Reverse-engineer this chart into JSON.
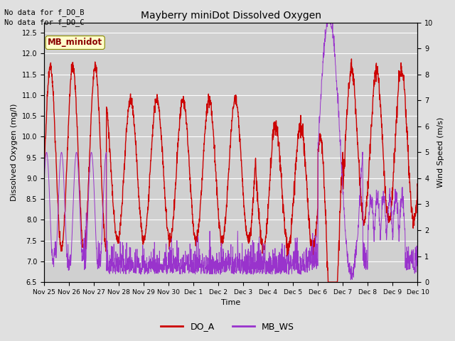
{
  "title": "Mayberry miniDot Dissolved Oxygen",
  "xlabel": "Time",
  "ylabel_left": "Dissolved Oxygen (mg/l)",
  "ylabel_right": "Wind Speed (m/s)",
  "annotation_lines": [
    "No data for f_DO_B",
    "No data for f_DO_C"
  ],
  "legend_label_box": "MB_minidot",
  "legend_entries": [
    "DO_A",
    "MB_WS"
  ],
  "do_color": "#cc0000",
  "ws_color": "#9933cc",
  "ylim_left": [
    6.5,
    12.75
  ],
  "ylim_right": [
    0.0,
    10.0
  ],
  "yticks_left": [
    6.5,
    7.0,
    7.5,
    8.0,
    8.5,
    9.0,
    9.5,
    10.0,
    10.5,
    11.0,
    11.5,
    12.0,
    12.5
  ],
  "yticks_right": [
    0.0,
    1.0,
    2.0,
    3.0,
    4.0,
    5.0,
    6.0,
    7.0,
    8.0,
    9.0,
    10.0
  ],
  "bg_color": "#e0e0e0",
  "plot_bg_color": "#d0d0d0",
  "grid_color": "#ffffff",
  "linewidth_do": 1.0,
  "linewidth_ws": 0.7,
  "num_points": 2000,
  "figsize": [
    6.4,
    4.8
  ],
  "dpi": 100
}
